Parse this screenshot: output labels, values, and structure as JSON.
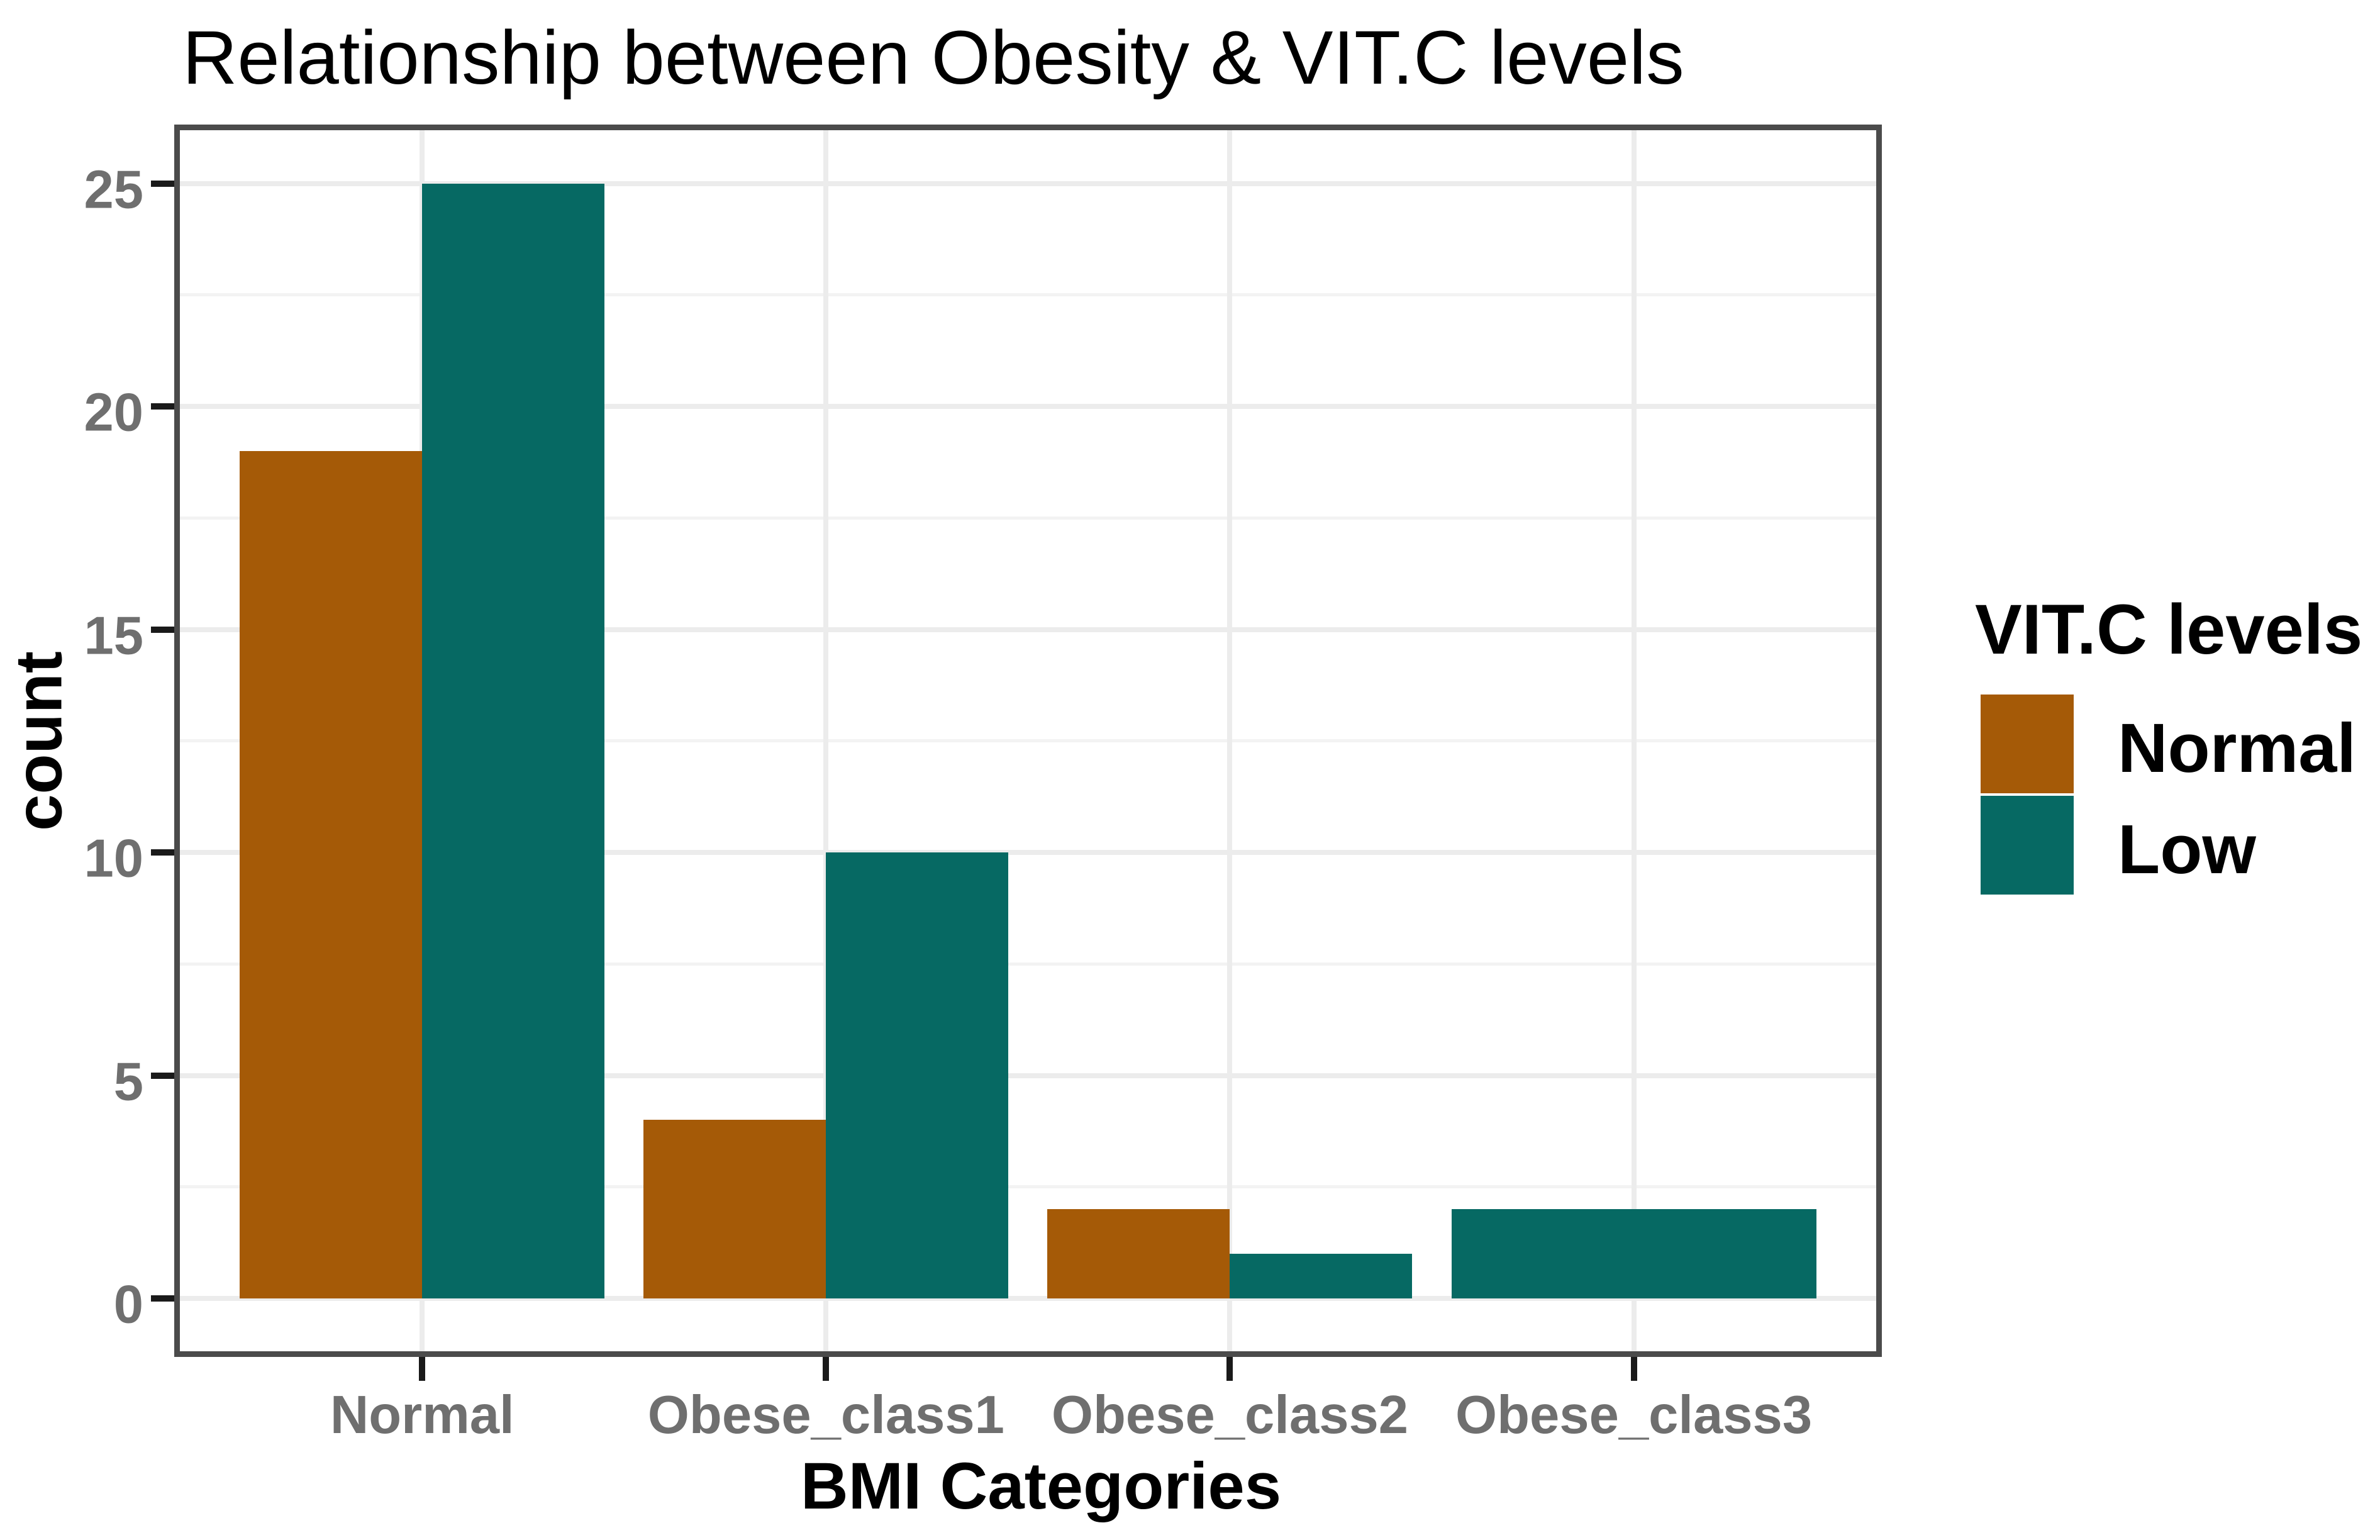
{
  "title": "Relationship between Obesity & VIT.C levels",
  "y_axis": {
    "label": "count",
    "tick_labels": [
      "0",
      "5",
      "10",
      "15",
      "20",
      "25"
    ]
  },
  "x_axis": {
    "label": "BMI Categories",
    "categories": [
      "Normal",
      "Obese_class1",
      "Obese_class2",
      "Obese_class3"
    ]
  },
  "legend": {
    "title": "VIT.C levels",
    "items": [
      {
        "label": "Normal",
        "color": "#A55A07"
      },
      {
        "label": "Low",
        "color": "#066963"
      }
    ]
  },
  "colors": {
    "normal_series": "#A55A07",
    "low_series": "#066963",
    "grid_major": "#ECECEC",
    "grid_minor": "#F3F3F3",
    "panel_border": "#4B4B4B",
    "tick_mark": "#1A1A1A",
    "tick_label": "#6F6F6F",
    "text": "#000000",
    "background": "#FFFFFF"
  },
  "chart_data": {
    "type": "bar",
    "title": "Relationship between Obesity & VIT.C levels",
    "xlabel": "BMI Categories",
    "ylabel": "count",
    "categories": [
      "Normal",
      "Obese_class1",
      "Obese_class2",
      "Obese_class3"
    ],
    "series": [
      {
        "name": "Normal",
        "color": "#A55A07",
        "values": [
          19,
          4,
          2,
          null
        ]
      },
      {
        "name": "Low",
        "color": "#066963",
        "values": [
          25,
          10,
          1,
          2
        ]
      }
    ],
    "bar_mode": "dodge",
    "missing_group_bars_expand": true,
    "ylim": [
      0,
      25
    ],
    "yticks": [
      0,
      5,
      10,
      15,
      20,
      25
    ],
    "minor_gridlines": [
      2.5,
      7.5,
      12.5,
      17.5,
      22.5
    ],
    "grid": "on",
    "legend_position": "right"
  }
}
